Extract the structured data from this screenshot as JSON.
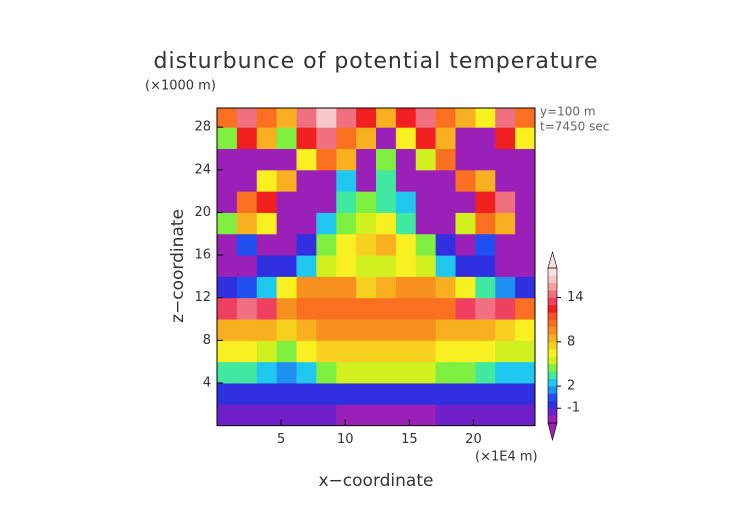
{
  "chart_data": {
    "type": "heatmap",
    "title": "disturbunce of potential temperature",
    "y_unit": "(×1000 m)",
    "x_unit": "(×1E4 m)",
    "annotations": [
      "y=100 m",
      "t=7450 sec"
    ],
    "x_label": "x−coordinate",
    "y_label": "z−coordinate",
    "xlim": [
      0,
      24.8
    ],
    "ylim": [
      0,
      29.8
    ],
    "xticks": [
      5,
      10,
      15,
      20
    ],
    "yticks": [
      4,
      8,
      12,
      16,
      20,
      24,
      28
    ],
    "x": [
      0.8,
      2.3,
      3.9,
      5.4,
      7,
      8.5,
      10.1,
      11.6,
      13.2,
      14.7,
      16.3,
      17.8,
      19.4,
      20.9,
      22.5,
      24
    ],
    "y": [
      1,
      3,
      5,
      7,
      9,
      11,
      13,
      15,
      17,
      19,
      21,
      23,
      25,
      27,
      29
    ],
    "z": [
      [
        -1.5,
        -1.5,
        -1.5,
        -1.5,
        -1.5,
        -2,
        -3,
        -3,
        -3,
        -3,
        -3,
        -2,
        -1.5,
        -1.5,
        -1.5,
        -1.5
      ],
      [
        -1,
        -1,
        -1,
        -1,
        -1,
        -1,
        -1,
        -1,
        -1,
        -1,
        -1,
        -1,
        -1,
        -1,
        -1,
        -1
      ],
      [
        3,
        3,
        2,
        1,
        2,
        4,
        5,
        5,
        5,
        5,
        5,
        4,
        4,
        3,
        2,
        2
      ],
      [
        6,
        6,
        5,
        4,
        6,
        7,
        7,
        7,
        7,
        7,
        7,
        6,
        6,
        6,
        5,
        5
      ],
      [
        8,
        8,
        8,
        7,
        8,
        9,
        9,
        9,
        9,
        9,
        9,
        8,
        8,
        8,
        7,
        6
      ],
      [
        13,
        14,
        13,
        9,
        10,
        10,
        10,
        10,
        10,
        10,
        10,
        10,
        13,
        14,
        13,
        10
      ],
      [
        -1,
        0,
        2,
        6,
        9,
        9,
        9,
        7,
        8,
        9,
        9,
        8,
        6,
        3,
        1,
        -1
      ],
      [
        -3,
        -3,
        -1,
        -1,
        2,
        5,
        6,
        5,
        5,
        6,
        5,
        2,
        -1,
        -1,
        -3,
        -3
      ],
      [
        -3,
        0,
        -3,
        -3,
        -1,
        4,
        6,
        7,
        8,
        6,
        4,
        -1,
        -3,
        0,
        -3,
        -3
      ],
      [
        4,
        8,
        6,
        -3,
        -3,
        2,
        4,
        5,
        6,
        3,
        -3,
        -3,
        5,
        10,
        8,
        -3
      ],
      [
        -3,
        10,
        12,
        -3,
        -3,
        -3,
        3,
        4,
        3,
        2,
        -3,
        -3,
        -3,
        12,
        14,
        -3
      ],
      [
        -3,
        -3,
        6,
        8,
        -3,
        -3,
        2,
        -3,
        3,
        -3,
        -3,
        -3,
        10,
        8,
        -3,
        -3
      ],
      [
        -3,
        -3,
        -3,
        -3,
        6,
        10,
        8,
        -3,
        4,
        -3,
        5,
        10,
        -3,
        -3,
        -3,
        -3
      ],
      [
        4,
        12,
        8,
        4,
        12,
        14,
        10,
        8,
        -3,
        6,
        12,
        8,
        -3,
        -3,
        12,
        6
      ],
      [
        10,
        14,
        10,
        8,
        14,
        16,
        14,
        12,
        8,
        12,
        14,
        10,
        8,
        6,
        14,
        10
      ]
    ],
    "colorbar": {
      "levels": [
        -3,
        -2,
        -1,
        0,
        1,
        2,
        3,
        4,
        5,
        6,
        7,
        8,
        9,
        10,
        11,
        12,
        13,
        14,
        15,
        16,
        17,
        18
      ],
      "colors": [
        "#9a20b8",
        "#7020c8",
        "#3030e0",
        "#2050f0",
        "#2090f0",
        "#20c8f0",
        "#40e8a0",
        "#80f040",
        "#d0f020",
        "#f8f020",
        "#f8d020",
        "#f8b020",
        "#f89020",
        "#f87020",
        "#f85020",
        "#f02020",
        "#f04060",
        "#f07080",
        "#f8a0a0",
        "#f8c8c8",
        "#f8e0e0"
      ],
      "ticks": [
        -1,
        2,
        8,
        14
      ]
    }
  }
}
